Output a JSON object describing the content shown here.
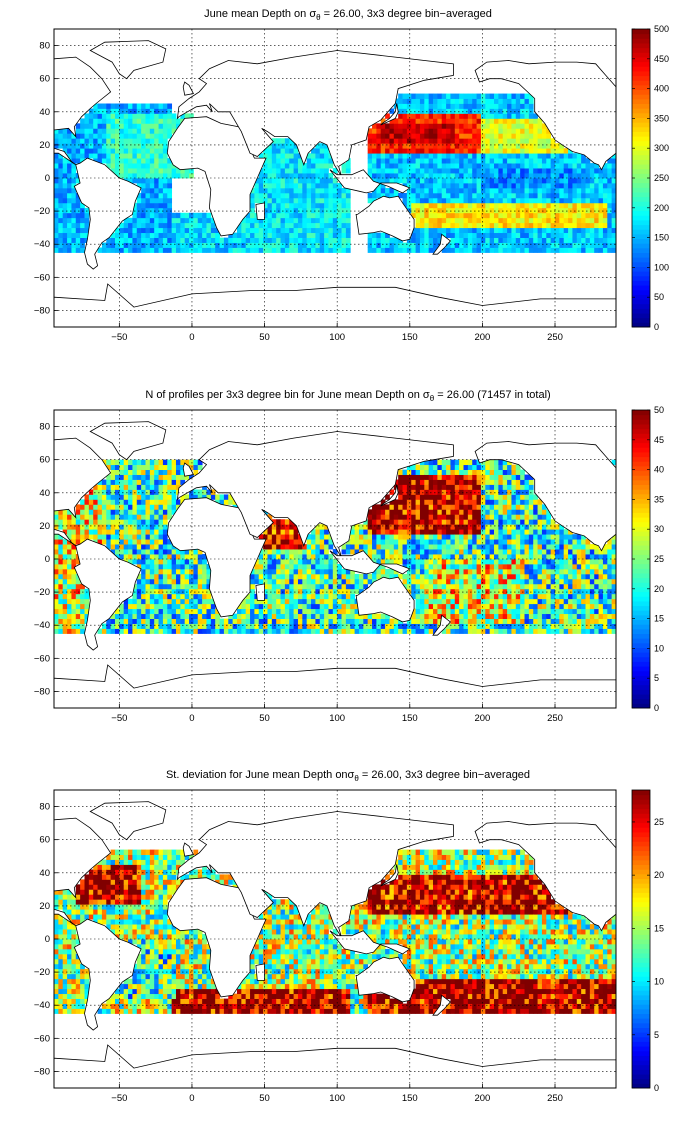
{
  "chart_data": [
    {
      "type": "heatmap",
      "title": "June mean Depth on σθ = 26.00, 3x3 degree bin−averaged",
      "title_parts": {
        "pre": "June mean Depth on σ",
        "sub": "θ",
        "post": " = 26.00, 3x3 degree bin−averaged"
      },
      "xlim": [
        -95,
        292
      ],
      "ylim": [
        -90,
        90
      ],
      "xticks": [
        -50,
        0,
        50,
        100,
        150,
        200,
        250
      ],
      "yticks": [
        -80,
        -60,
        -40,
        -20,
        0,
        20,
        40,
        60,
        80
      ],
      "grid": true,
      "colormap": "jet",
      "colorbar": {
        "min": 0,
        "max": 500,
        "ticks": [
          0,
          50,
          100,
          150,
          200,
          250,
          300,
          350,
          400,
          450,
          500
        ]
      },
      "regions": [
        {
          "lon": [
            -95,
            -15
          ],
          "lat": [
            -45,
            45
          ],
          "value": 150
        },
        {
          "lon": [
            -60,
            0
          ],
          "lat": [
            0,
            40
          ],
          "value": 210
        },
        {
          "lon": [
            -15,
            40
          ],
          "lat": [
            -45,
            -20
          ],
          "value": 170
        },
        {
          "lon": [
            40,
            110
          ],
          "lat": [
            -45,
            25
          ],
          "value": 180
        },
        {
          "lon": [
            120,
            292
          ],
          "lat": [
            -45,
            50
          ],
          "value": 160
        },
        {
          "lon": [
            120,
            200
          ],
          "lat": [
            15,
            38
          ],
          "value": 420
        },
        {
          "lon": [
            130,
            180
          ],
          "lat": [
            22,
            32
          ],
          "value": 470
        },
        {
          "lon": [
            200,
            260
          ],
          "lat": [
            15,
            35
          ],
          "value": 300
        },
        {
          "lon": [
            150,
            285
          ],
          "lat": [
            -30,
            -15
          ],
          "value": 320
        },
        {
          "lon": [
            200,
            270
          ],
          "lat": [
            -5,
            5
          ],
          "value": 130
        }
      ]
    },
    {
      "type": "heatmap",
      "title": "N of profiles per 3x3 degree bin for June mean Depth on σθ = 26.00 (71457 in total)",
      "title_parts": {
        "pre": "N of profiles per 3x3 degree bin for June mean Depth on σ",
        "sub": "θ",
        "post": " = 26.00 (71457 in total)"
      },
      "xlim": [
        -95,
        292
      ],
      "ylim": [
        -90,
        90
      ],
      "xticks": [
        -50,
        0,
        50,
        100,
        150,
        200,
        250
      ],
      "yticks": [
        -80,
        -60,
        -40,
        -20,
        0,
        20,
        40,
        60,
        80
      ],
      "grid": true,
      "colormap": "jet",
      "colorbar": {
        "min": 0,
        "max": 50,
        "ticks": [
          0,
          5,
          10,
          15,
          20,
          25,
          30,
          35,
          40,
          45,
          50
        ]
      },
      "regions": [
        {
          "lon": [
            -95,
            292
          ],
          "lat": [
            -45,
            60
          ],
          "value": 22
        },
        {
          "lon": [
            120,
            200
          ],
          "lat": [
            15,
            50
          ],
          "value": 48
        },
        {
          "lon": [
            45,
            80
          ],
          "lat": [
            5,
            28
          ],
          "value": 46
        },
        {
          "lon": [
            -95,
            -60
          ],
          "lat": [
            -45,
            45
          ],
          "value": 30
        },
        {
          "lon": [
            160,
            230
          ],
          "lat": [
            -40,
            0
          ],
          "value": 30
        }
      ]
    },
    {
      "type": "heatmap",
      "title": "St. deviation for June mean Depth onσθ = 26.00, 3x3 degree bin−averaged",
      "title_parts": {
        "pre": "St. deviation for June mean Depth onσ",
        "sub": "θ",
        "post": " = 26.00, 3x3 degree bin−averaged"
      },
      "xlim": [
        -95,
        292
      ],
      "ylim": [
        -90,
        90
      ],
      "xticks": [
        -50,
        0,
        50,
        100,
        150,
        200,
        250
      ],
      "yticks": [
        -80,
        -60,
        -40,
        -20,
        0,
        20,
        40,
        60,
        80
      ],
      "grid": true,
      "colormap": "jet",
      "colorbar": {
        "min": 0,
        "max": 28,
        "ticks": [
          0,
          5,
          10,
          15,
          20,
          25
        ]
      },
      "regions": [
        {
          "lon": [
            -95,
            292
          ],
          "lat": [
            -45,
            55
          ],
          "value": 15
        },
        {
          "lon": [
            -80,
            -35
          ],
          "lat": [
            20,
            45
          ],
          "value": 27
        },
        {
          "lon": [
            -15,
            110
          ],
          "lat": [
            -45,
            -30
          ],
          "value": 27
        },
        {
          "lon": [
            120,
            260
          ],
          "lat": [
            15,
            40
          ],
          "value": 26
        },
        {
          "lon": [
            120,
            292
          ],
          "lat": [
            -45,
            -25
          ],
          "value": 27
        },
        {
          "lon": [
            -60,
            -10
          ],
          "lat": [
            -35,
            0
          ],
          "value": 12
        }
      ]
    }
  ]
}
